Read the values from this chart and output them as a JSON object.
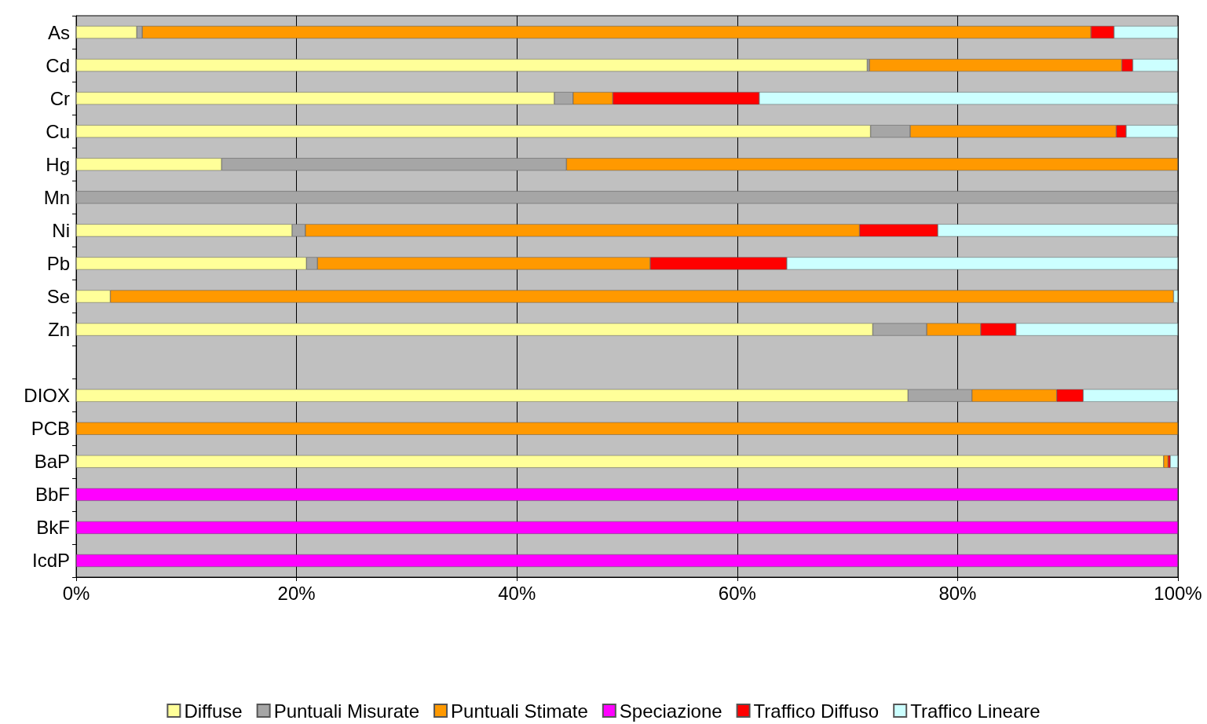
{
  "chart_data": {
    "type": "bar",
    "orientation": "horizontal",
    "stacked": true,
    "categories": [
      "As",
      "Cd",
      "Cr",
      "Cu",
      "Hg",
      "Mn",
      "Ni",
      "Pb",
      "Se",
      "Zn",
      null,
      "DIOX",
      "PCB",
      "BaP",
      "BbF",
      "BkF",
      "IcdP"
    ],
    "series": [
      {
        "name": "Diffuse",
        "color": "#ffff99",
        "values": [
          5.5,
          71.8,
          43.4,
          72.1,
          13.2,
          null,
          19.6,
          20.9,
          3.1,
          72.3,
          null,
          75.5,
          null,
          98.7,
          null,
          null,
          null
        ]
      },
      {
        "name": "Puntuali Misurate",
        "color": "#a6a6a6",
        "values": [
          0.5,
          0.2,
          1.7,
          3.6,
          31.3,
          100,
          1.2,
          1.0,
          null,
          4.9,
          null,
          5.8,
          null,
          null,
          null,
          null,
          null
        ]
      },
      {
        "name": "Puntuali Stimate",
        "color": "#ff9900",
        "values": [
          86.1,
          22.9,
          3.6,
          18.7,
          55.5,
          null,
          50.3,
          30.2,
          96.5,
          4.9,
          null,
          7.7,
          100,
          0.4,
          null,
          null,
          null
        ]
      },
      {
        "name": "Speciazione",
        "color": "#ff00ff",
        "values": [
          null,
          null,
          null,
          null,
          null,
          null,
          null,
          null,
          null,
          null,
          null,
          null,
          null,
          null,
          100,
          100,
          100
        ]
      },
      {
        "name": "Traffico Diffuso",
        "color": "#ff0000",
        "values": [
          2.1,
          1.0,
          13.3,
          0.9,
          null,
          null,
          7.1,
          12.4,
          null,
          3.2,
          null,
          2.4,
          null,
          0.2,
          null,
          null,
          null
        ]
      },
      {
        "name": "Traffico Lineare",
        "color": "#ccffff",
        "values": [
          5.8,
          4.1,
          38.0,
          4.7,
          null,
          null,
          21.8,
          35.5,
          0.4,
          14.7,
          null,
          8.6,
          null,
          0.7,
          null,
          null,
          null
        ]
      }
    ],
    "xlim": [
      0,
      100
    ],
    "xticks": [
      {
        "value": 0,
        "label": "0%"
      },
      {
        "value": 20,
        "label": "20%"
      },
      {
        "value": 40,
        "label": "40%"
      },
      {
        "value": 60,
        "label": "60%"
      },
      {
        "value": 80,
        "label": "80%"
      },
      {
        "value": 100,
        "label": "100%"
      }
    ],
    "grid": "x",
    "legend": "bottom"
  }
}
